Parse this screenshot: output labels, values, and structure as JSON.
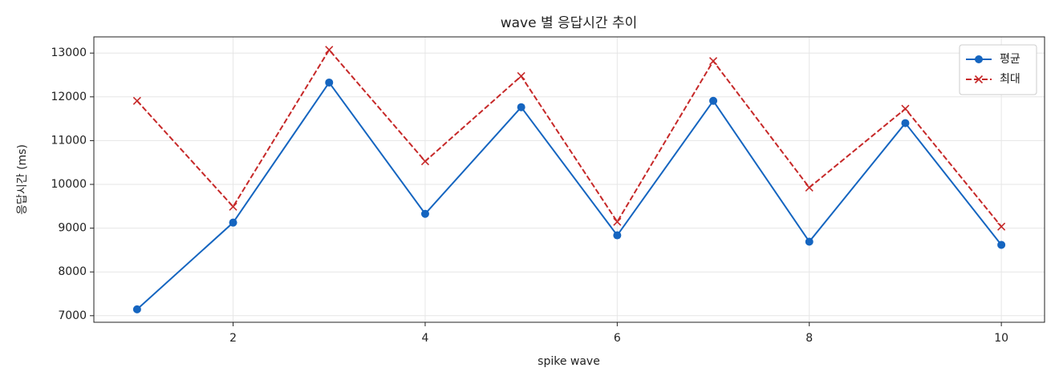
{
  "chart_data": {
    "type": "line",
    "title": "wave 별 응답시간 추이",
    "x_label": "spike wave",
    "y_label": "응답시간 (ms)",
    "x": [
      1,
      2,
      3,
      4,
      5,
      6,
      7,
      8,
      9,
      10
    ],
    "series": [
      {
        "name": "평균",
        "color": "#1565c0",
        "marker": "circle",
        "linestyle": "solid",
        "values": [
          7145,
          9127,
          12327,
          9327,
          11764,
          8836,
          11909,
          8691,
          11400,
          8618
        ]
      },
      {
        "name": "최대",
        "color": "#c62828",
        "marker": "x",
        "linestyle": "dashed",
        "values": [
          11909,
          9491,
          13073,
          10527,
          12473,
          9145,
          12818,
          9927,
          11727,
          9036
        ]
      }
    ],
    "xlim": [
      0.55,
      10.45
    ],
    "xticks": [
      2,
      4,
      6,
      8,
      10
    ],
    "ylim": [
      6850,
      13370
    ],
    "yticks": [
      7000,
      8000,
      9000,
      10000,
      11000,
      12000,
      13000
    ],
    "grid": true,
    "legend_position": "upper-right"
  }
}
